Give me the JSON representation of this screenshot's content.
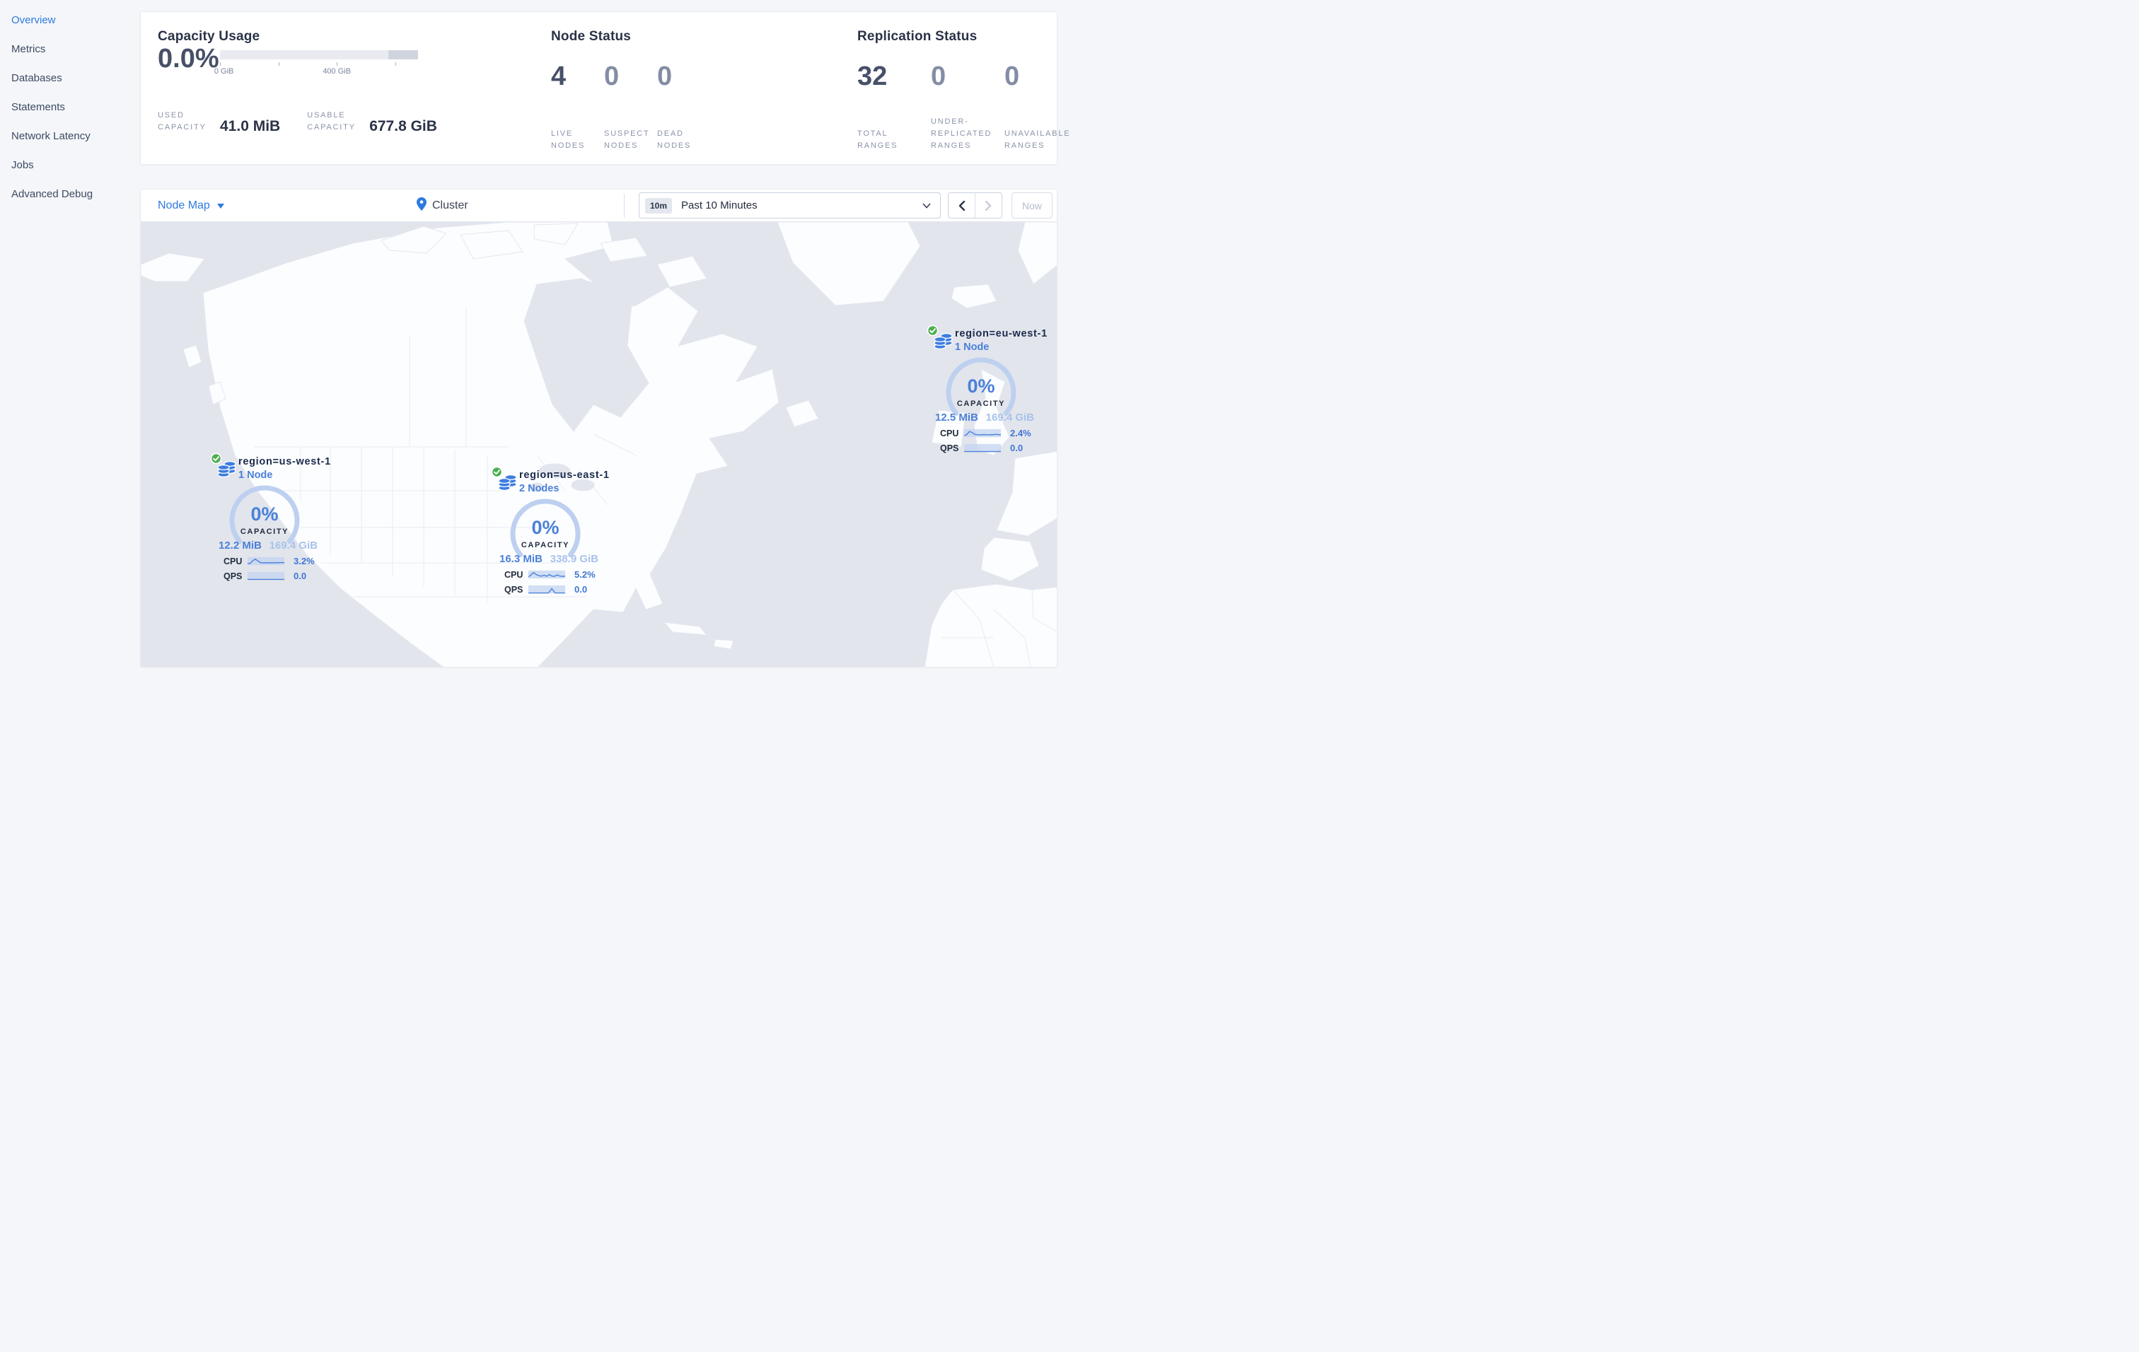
{
  "sidebar": {
    "items": [
      {
        "label": "Overview",
        "active": true
      },
      {
        "label": "Metrics",
        "active": false
      },
      {
        "label": "Databases",
        "active": false
      },
      {
        "label": "Statements",
        "active": false
      },
      {
        "label": "Network Latency",
        "active": false
      },
      {
        "label": "Jobs",
        "active": false
      },
      {
        "label": "Advanced Debug",
        "active": false
      }
    ]
  },
  "summary": {
    "capacity": {
      "title": "Capacity Usage",
      "percent": "0.0%",
      "bar": {
        "tick_labels": [
          "0 GiB",
          "400 GiB"
        ],
        "dark_segment_start_pct": 85
      },
      "used": {
        "label": "USED CAPACITY",
        "value": "41.0 MiB"
      },
      "usable": {
        "label": "USABLE CAPACITY",
        "value": "677.8 GiB"
      }
    },
    "nodes": {
      "title": "Node Status",
      "stats": [
        {
          "value": "4",
          "label": "LIVE NODES"
        },
        {
          "value": "0",
          "label": "SUSPECT NODES"
        },
        {
          "value": "0",
          "label": "DEAD NODES"
        }
      ]
    },
    "replication": {
      "title": "Replication Status",
      "stats": [
        {
          "value": "32",
          "label": "TOTAL RANGES"
        },
        {
          "value": "0",
          "label": "UNDER-REPLICATED RANGES"
        },
        {
          "value": "0",
          "label": "UNAVAILABLE RANGES"
        }
      ]
    }
  },
  "toolbar": {
    "view_selector": "Node Map",
    "breadcrumb": "Cluster",
    "time_badge": "10m",
    "time_label": "Past 10 Minutes",
    "now_label": "Now"
  },
  "map": {
    "regions": [
      {
        "name": "region=us-west-1",
        "nodes": "1 Node",
        "capacity_pct": "0%",
        "capacity_label": "CAPACITY",
        "used": "12.2 MiB",
        "usable": "169.4 GiB",
        "cpu_label": "CPU",
        "cpu_value": "3.2%",
        "qps_label": "QPS",
        "qps_value": "0.0",
        "cpu_spark": [
          0.18,
          0.2,
          0.55,
          0.75,
          0.5,
          0.3,
          0.28,
          0.3,
          0.27,
          0.3,
          0.28,
          0.3,
          0.3,
          0.32,
          0.3
        ],
        "qps_spark": [
          0.06,
          0.06,
          0.06,
          0.06,
          0.06,
          0.06,
          0.06,
          0.06,
          0.06,
          0.06,
          0.06,
          0.06
        ]
      },
      {
        "name": "region=us-east-1",
        "nodes": "2 Nodes",
        "capacity_pct": "0%",
        "capacity_label": "CAPACITY",
        "used": "16.3 MiB",
        "usable": "338.9 GiB",
        "cpu_label": "CPU",
        "cpu_value": "5.2%",
        "qps_label": "QPS",
        "qps_value": "0.0",
        "cpu_spark": [
          0.2,
          0.45,
          0.75,
          0.5,
          0.35,
          0.3,
          0.42,
          0.28,
          0.5,
          0.3,
          0.28,
          0.45,
          0.3,
          0.26,
          0.3
        ],
        "qps_spark": [
          0.05,
          0.05,
          0.05,
          0.05,
          0.05,
          0.05,
          0.05,
          0.6,
          0.05,
          0.05,
          0.05,
          0.05
        ]
      },
      {
        "name": "region=eu-west-1",
        "nodes": "1 Node",
        "capacity_pct": "0%",
        "capacity_label": "CAPACITY",
        "used": "12.5 MiB",
        "usable": "169.4 GiB",
        "cpu_label": "CPU",
        "cpu_value": "2.4%",
        "qps_label": "QPS",
        "qps_value": "0.0",
        "cpu_spark": [
          0.2,
          0.3,
          0.7,
          0.6,
          0.35,
          0.3,
          0.28,
          0.3,
          0.32,
          0.28,
          0.3,
          0.3,
          0.35,
          0.3,
          0.3
        ],
        "qps_spark": [
          0.05,
          0.05,
          0.05,
          0.05,
          0.05,
          0.05,
          0.05,
          0.05,
          0.05,
          0.05,
          0.05,
          0.05
        ]
      }
    ]
  },
  "colors": {
    "accent_blue": "#2f7ae0",
    "marker_blue": "#4a80d9",
    "light_blue": "#a9c2ec",
    "arc_blue": "#bed0f0",
    "healthy_green": "#4caf50",
    "ocean": "#e2e5ec",
    "land": "#fcfdfe",
    "dark_text": "#2a3347",
    "muted_text": "#8b93a9"
  }
}
